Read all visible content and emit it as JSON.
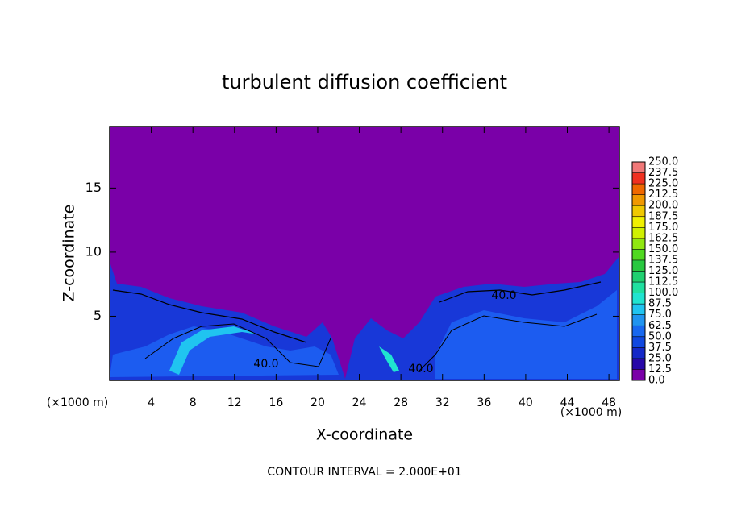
{
  "chart_data": {
    "type": "heatmap",
    "title": "turbulent diffusion coefficient",
    "x_label": "X-coordinate",
    "y_label": "Z-coordinate",
    "x_unit_labels": [
      "(×1000 m)",
      "(×1000 m)"
    ],
    "footer": "CONTOUR INTERVAL = 2.000E+01",
    "xlim": [
      0,
      49
    ],
    "ylim": [
      0,
      19.8
    ],
    "xticks": [
      4,
      8,
      12,
      16,
      20,
      24,
      28,
      32,
      36,
      40,
      44,
      48
    ],
    "yticks": [
      5,
      10,
      15
    ],
    "contour_labels": [
      "40.0",
      "40.0",
      "40.0"
    ],
    "colorbar": {
      "levels": [
        {
          "value": 0,
          "label": "0.0"
        },
        12.5,
        {
          "value": 25,
          "label": "25.0"
        },
        37.5,
        {
          "value": 50,
          "label": "50.0"
        },
        62.5,
        {
          "value": 75,
          "label": "75.0"
        },
        87.5,
        {
          "value": 100,
          "label": "100.0"
        },
        112.5,
        {
          "value": 125,
          "label": "125.0"
        },
        137.5,
        {
          "value": 150,
          "label": "150.0"
        },
        162.5,
        {
          "value": 175,
          "label": "175.0"
        },
        187.5,
        {
          "value": 200,
          "label": "200.0"
        },
        212.5,
        {
          "value": 225,
          "label": "225.0"
        },
        237.5,
        {
          "value": 250,
          "label": "250.0"
        }
      ],
      "colors": [
        "#7a00a8",
        "#2808a8",
        "#1428c8",
        "#1048e0",
        "#1868f0",
        "#2094f0",
        "#20c4f0",
        "#20e4d0",
        "#20e0a0",
        "#20d070",
        "#28c840",
        "#50d820",
        "#90e810",
        "#d0f000",
        "#f0f000",
        "#f0c800",
        "#f09800",
        "#f06800",
        "#f03020",
        "#f07878"
      ]
    }
  }
}
